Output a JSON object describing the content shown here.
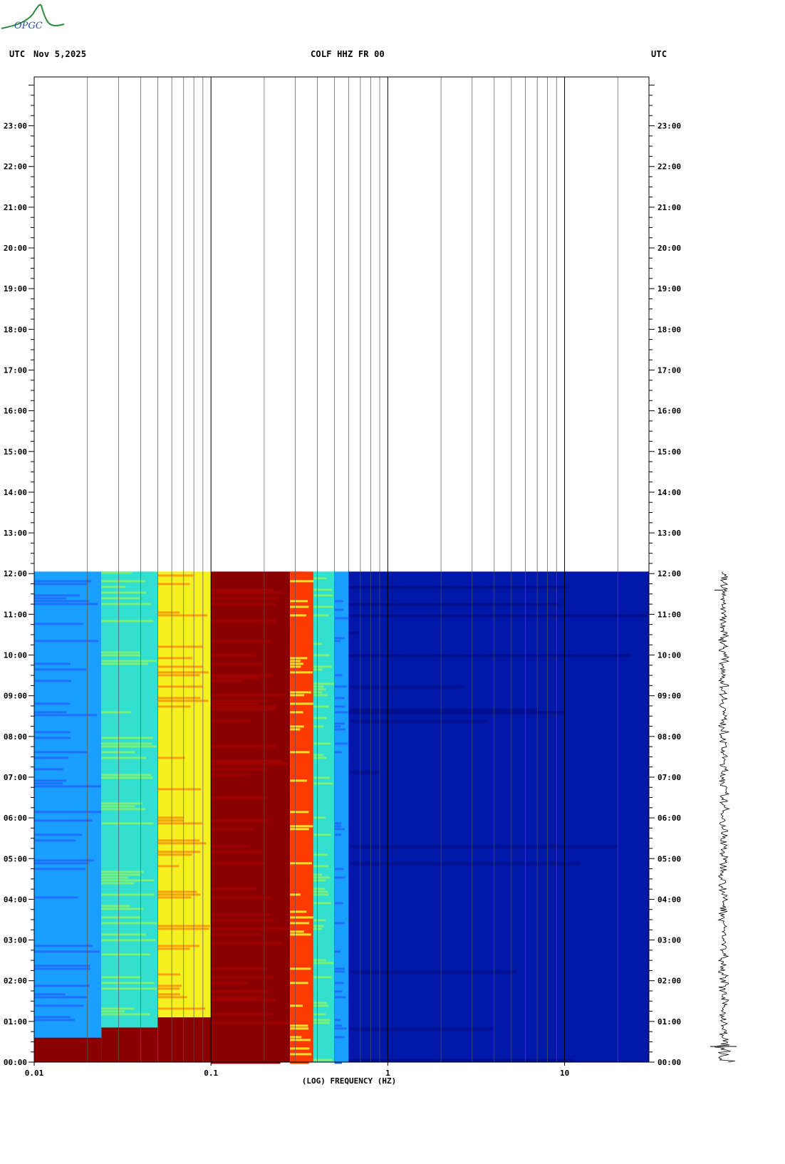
{
  "header": {
    "left_tz": "UTC",
    "date": "Nov 5,2025",
    "station": "COLF HHZ FR 00",
    "right_tz": "UTC"
  },
  "logo": {
    "text": "OPGC"
  },
  "colors": {
    "low": "#0018a8",
    "mid_low": "#1a9fff",
    "mid": "#33e0d0",
    "mid_high": "#f5f020",
    "high": "#ff3a00",
    "max": "#8a0000"
  },
  "chart_data": {
    "type": "heatmap",
    "title": "COLF HHZ FR 00",
    "xlabel": "(LOG) FREQUENCY (HZ)",
    "ylabel": "UTC",
    "x_scale": "log",
    "xlim": [
      0.01,
      30
    ],
    "x_ticks": [
      0.01,
      0.1,
      1,
      10
    ],
    "x_tick_labels": [
      "0.01",
      "0.1",
      "1",
      "10"
    ],
    "y_ticks_hours": [
      0,
      1,
      2,
      3,
      4,
      5,
      6,
      7,
      8,
      9,
      10,
      11,
      12,
      13,
      14,
      15,
      16,
      17,
      18,
      19,
      20,
      21,
      22,
      23
    ],
    "y_tick_labels": [
      "00:00",
      "01:00",
      "02:00",
      "03:00",
      "04:00",
      "05:00",
      "06:00",
      "07:00",
      "08:00",
      "09:00",
      "10:00",
      "11:00",
      "12:00",
      "13:00",
      "14:00",
      "15:00",
      "16:00",
      "17:00",
      "18:00",
      "19:00",
      "20:00",
      "21:00",
      "22:00",
      "23:00"
    ],
    "ylim_hours": [
      0,
      24.2
    ],
    "data_end_hour": 12.05,
    "frequency_bands": [
      {
        "from": 0.01,
        "to": 0.024,
        "level": "mid_low"
      },
      {
        "from": 0.024,
        "to": 0.05,
        "level": "mid"
      },
      {
        "from": 0.05,
        "to": 0.1,
        "level": "mid_high"
      },
      {
        "from": 0.1,
        "to": 0.28,
        "level": "max"
      },
      {
        "from": 0.28,
        "to": 0.38,
        "level": "high"
      },
      {
        "from": 0.38,
        "to": 0.5,
        "level": "mid"
      },
      {
        "from": 0.5,
        "to": 0.6,
        "level": "mid_low"
      },
      {
        "from": 0.6,
        "to": 30,
        "level": "low"
      }
    ],
    "grid": "log-decade vertical lines",
    "seismogram_trace": "right side, 00:00–12:00"
  }
}
